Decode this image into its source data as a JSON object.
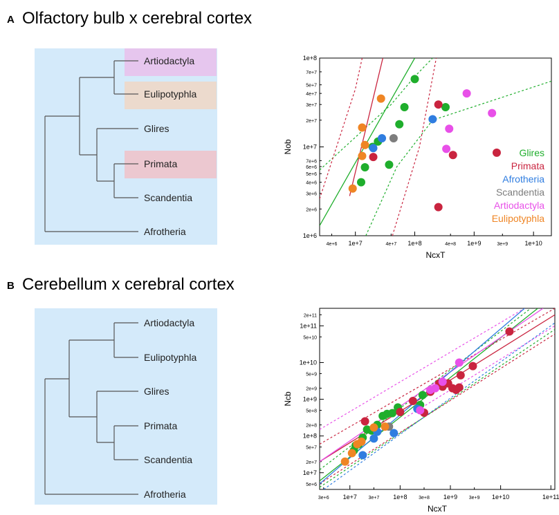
{
  "panels": [
    {
      "letter": "A",
      "title": "Olfactory bulb x cerebral cortex"
    },
    {
      "letter": "B",
      "title": "Cerebellum x cerebral cortex"
    }
  ],
  "trees": [
    {
      "taxa": [
        "Artiodactyla",
        "Eulipotyphla",
        "Glires",
        "Primata",
        "Scandentia",
        "Afrotheria"
      ],
      "highlights": {
        "Artiodactyla": "#e6c6ee",
        "Eulipotyphla": "#ecdacd",
        "Primata": "#ecc8d0"
      }
    },
    {
      "taxa": [
        "Artiodactyla",
        "Eulipotyphla",
        "Glires",
        "Primata",
        "Scandentia",
        "Afrotheria"
      ],
      "highlights": {}
    }
  ],
  "colors": {
    "Glires": "#1fae2c",
    "Primata": "#c9243f",
    "Afrotheria": "#2f7de0",
    "Scandentia": "#7d7d7d",
    "Artiodactyla": "#e850e8",
    "Eulipotyphla": "#ef8524",
    "tree_bg": "#d4eafa"
  },
  "chart_data": [
    {
      "type": "scatter",
      "title": "Olfactory bulb x cerebral cortex",
      "xlabel": "NcxT",
      "ylabel": "Nob",
      "xscale": "log",
      "yscale": "log",
      "xlim": [
        2500000,
        20000000000
      ],
      "ylim": [
        1000000,
        100000000
      ],
      "xticks": [
        {
          "v": 4000000,
          "label": "4e+6",
          "major": false
        },
        {
          "v": 10000000,
          "label": "1e+7",
          "major": true
        },
        {
          "v": 40000000,
          "label": "4e+7",
          "major": false
        },
        {
          "v": 100000000,
          "label": "1e+8",
          "major": true
        },
        {
          "v": 400000000,
          "label": "4e+8",
          "major": false
        },
        {
          "v": 1000000000,
          "label": "1e+9",
          "major": true
        },
        {
          "v": 3000000000,
          "label": "3e+9",
          "major": false
        },
        {
          "v": 10000000000,
          "label": "1e+10",
          "major": true
        }
      ],
      "yticks": [
        {
          "v": 1000000,
          "label": "1e+6",
          "major": true
        },
        {
          "v": 2000000,
          "label": "2e+6",
          "major": false
        },
        {
          "v": 3000000,
          "label": "3e+6",
          "major": false
        },
        {
          "v": 4000000,
          "label": "4e+6",
          "major": false
        },
        {
          "v": 5000000,
          "label": "5e+6",
          "major": false
        },
        {
          "v": 6000000,
          "label": "6e+6",
          "major": false
        },
        {
          "v": 7000000,
          "label": "7e+6",
          "major": false
        },
        {
          "v": 10000000,
          "label": "1e+7",
          "major": true
        },
        {
          "v": 20000000,
          "label": "2e+7",
          "major": false
        },
        {
          "v": 30000000,
          "label": "3e+7",
          "major": false
        },
        {
          "v": 40000000,
          "label": "4e+7",
          "major": false
        },
        {
          "v": 50000000,
          "label": "5e+7",
          "major": false
        },
        {
          "v": 70000000,
          "label": "7e+7",
          "major": false
        },
        {
          "v": 100000000,
          "label": "1e+8",
          "major": true
        }
      ],
      "legend": [
        "Glires",
        "Primata",
        "Afrotheria",
        "Scandentia",
        "Artiodactyla",
        "Eulipotyphla"
      ],
      "legend_position": "right",
      "series": [
        {
          "name": "Glires",
          "points": [
            [
              12500000,
              4000000
            ],
            [
              14500000,
              5900000
            ],
            [
              19500000,
              10000000
            ],
            [
              24000000,
              11500000
            ],
            [
              37000000,
              6300000
            ],
            [
              55000000,
              18000000
            ],
            [
              67000000,
              28000000
            ],
            [
              100000000,
              58000000
            ],
            [
              330000000,
              28000000
            ]
          ]
        },
        {
          "name": "Primata",
          "points": [
            [
              20000000,
              7700000
            ],
            [
              250000000,
              30000000
            ],
            [
              250000000,
              2100000
            ],
            [
              440000000,
              8100000
            ],
            [
              2400000000,
              8600000
            ]
          ]
        },
        {
          "name": "Afrotheria",
          "points": [
            [
              20000000,
              9700000
            ],
            [
              28000000,
              12500000
            ],
            [
              200000000,
              20500000
            ]
          ]
        },
        {
          "name": "Scandentia",
          "points": [
            [
              44000000,
              12500000
            ]
          ]
        },
        {
          "name": "Artiodactyla",
          "points": [
            [
              340000000,
              9500000
            ],
            [
              380000000,
              16000000
            ],
            [
              750000000,
              40000000
            ],
            [
              2000000000,
              24000000
            ]
          ]
        },
        {
          "name": "Eulipotyphla",
          "points": [
            [
              9000000,
              3400000
            ],
            [
              13000000,
              7900000
            ],
            [
              14500000,
              10500000
            ],
            [
              13000000,
              16500000
            ],
            [
              27000000,
              35000000
            ]
          ]
        }
      ],
      "fit_lines": [
        {
          "name": "Glires",
          "style": "solid",
          "points": [
            [
              2500000,
              1300000
            ],
            [
              100000000,
              100000000
            ]
          ]
        },
        {
          "name": "Glires",
          "style": "dashed",
          "points": [
            [
              2500000,
              5500000
            ],
            [
              40000000,
              30000000
            ],
            [
              100000000,
              62000000
            ],
            [
              200000000,
              100000000
            ]
          ]
        },
        {
          "name": "Glires",
          "style": "dashed",
          "points": [
            [
              15000000,
              1000000
            ],
            [
              50000000,
              6000000
            ],
            [
              200000000,
              20000000
            ],
            [
              20000000000,
              55000000
            ]
          ]
        },
        {
          "name": "Primata",
          "style": "solid",
          "points": [
            [
              8000000,
              2800000
            ],
            [
              29000000,
              100000000
            ]
          ]
        },
        {
          "name": "Primata",
          "style": "dashed",
          "points": [
            [
              2500000,
              2600000
            ],
            [
              10000000,
              45000000
            ],
            [
              13000000,
              100000000
            ]
          ]
        },
        {
          "name": "Primata",
          "style": "dashed",
          "points": [
            [
              42000000,
              1000000
            ],
            [
              120000000,
              10000000
            ],
            [
              230000000,
              100000000
            ]
          ]
        }
      ]
    },
    {
      "type": "scatter",
      "title": "Cerebellum x cerebral cortex",
      "xlabel": "NcxT",
      "ylabel": "Ncb",
      "xscale": "log",
      "yscale": "log",
      "xlim": [
        2500000,
        120000000000
      ],
      "ylim": [
        3500000,
        300000000000
      ],
      "xticks": [
        {
          "v": 3000000,
          "label": "3e+6",
          "major": false
        },
        {
          "v": 10000000,
          "label": "1e+7",
          "major": true
        },
        {
          "v": 30000000,
          "label": "3e+7",
          "major": false
        },
        {
          "v": 100000000,
          "label": "1e+8",
          "major": true
        },
        {
          "v": 300000000,
          "label": "3e+8",
          "major": false
        },
        {
          "v": 1000000000,
          "label": "1e+9",
          "major": true
        },
        {
          "v": 3000000000,
          "label": "3e+9",
          "major": false
        },
        {
          "v": 10000000000,
          "label": "1e+10",
          "major": true
        },
        {
          "v": 100000000000,
          "label": "1e+11",
          "major": true
        }
      ],
      "yticks": [
        {
          "v": 5000000,
          "label": "5e+6",
          "major": false
        },
        {
          "v": 10000000,
          "label": "1e+7",
          "major": true
        },
        {
          "v": 20000000,
          "label": "2e+7",
          "major": false
        },
        {
          "v": 50000000,
          "label": "5e+7",
          "major": false
        },
        {
          "v": 100000000,
          "label": "1e+8",
          "major": true
        },
        {
          "v": 200000000,
          "label": "2e+8",
          "major": false
        },
        {
          "v": 500000000,
          "label": "5e+8",
          "major": false
        },
        {
          "v": 1000000000,
          "label": "1e+9",
          "major": true
        },
        {
          "v": 2000000000,
          "label": "2e+9",
          "major": false
        },
        {
          "v": 5000000000,
          "label": "5e+9",
          "major": false
        },
        {
          "v": 10000000000,
          "label": "1e+10",
          "major": true
        },
        {
          "v": 50000000000,
          "label": "5e+10",
          "major": false
        },
        {
          "v": 100000000000,
          "label": "1e+11",
          "major": true
        },
        {
          "v": 200000000000,
          "label": "2e+11",
          "major": false
        }
      ],
      "series": [
        {
          "name": "Glires",
          "points": [
            [
              12000000,
              40000000
            ],
            [
              13000000,
              55000000
            ],
            [
              15000000,
              60000000
            ],
            [
              18000000,
              90000000
            ],
            [
              22000000,
              150000000
            ],
            [
              27000000,
              140000000
            ],
            [
              35000000,
              200000000
            ],
            [
              45000000,
              350000000
            ],
            [
              55000000,
              400000000
            ],
            [
              70000000,
              420000000
            ],
            [
              90000000,
              600000000
            ],
            [
              250000000,
              700000000
            ],
            [
              280000000,
              1300000000
            ]
          ]
        },
        {
          "name": "Primata",
          "points": [
            [
              20000000,
              250000000
            ],
            [
              100000000,
              450000000
            ],
            [
              180000000,
              900000000
            ],
            [
              300000000,
              430000000
            ],
            [
              400000000,
              1600000000
            ],
            [
              600000000,
              2700000000
            ],
            [
              700000000,
              2200000000
            ],
            [
              900000000,
              2700000000
            ],
            [
              1100000000,
              2000000000
            ],
            [
              1300000000,
              1800000000
            ],
            [
              1500000000,
              2100000000
            ],
            [
              1600000000,
              4500000000
            ],
            [
              2800000000,
              8000000000
            ],
            [
              15000000000,
              70000000000
            ]
          ]
        },
        {
          "name": "Afrotheria",
          "points": [
            [
              18000000,
              30000000
            ],
            [
              30000000,
              85000000
            ],
            [
              35000000,
              130000000
            ],
            [
              75000000,
              120000000
            ],
            [
              220000000,
              550000000
            ]
          ]
        },
        {
          "name": "Scandentia",
          "points": [
            [
              60000000,
              180000000
            ]
          ]
        },
        {
          "name": "Artiodactyla",
          "points": [
            [
              250000000,
              500000000
            ],
            [
              400000000,
              1800000000
            ],
            [
              500000000,
              2000000000
            ],
            [
              700000000,
              3000000000
            ],
            [
              1500000000,
              10000000000
            ]
          ]
        },
        {
          "name": "Eulipotyphla",
          "points": [
            [
              8000000,
              20000000
            ],
            [
              11000000,
              34000000
            ],
            [
              14000000,
              60000000
            ],
            [
              17000000,
              70000000
            ],
            [
              30000000,
              170000000
            ],
            [
              50000000,
              180000000
            ]
          ]
        }
      ],
      "fit_lines": [
        {
          "name": "Glires",
          "style": "solid",
          "points": [
            [
              2500000,
              6000000
            ],
            [
              55000000000,
              300000000000
            ]
          ]
        },
        {
          "name": "Glires",
          "style": "dashed",
          "points": [
            [
              2500000,
              12000000
            ],
            [
              40000000000,
              300000000000
            ]
          ]
        },
        {
          "name": "Glires",
          "style": "dashed",
          "points": [
            [
              2500000,
              4000000
            ],
            [
              120000000000,
              80000000000
            ]
          ]
        },
        {
          "name": "Primata",
          "style": "solid",
          "points": [
            [
              2500000,
              20000000
            ],
            [
              120000000000,
              200000000000
            ]
          ]
        },
        {
          "name": "Primata",
          "style": "dashed",
          "points": [
            [
              2500000,
              60000000
            ],
            [
              120000000000,
              300000000000
            ]
          ]
        },
        {
          "name": "Primata",
          "style": "dashed",
          "points": [
            [
              2500000,
              5000000
            ],
            [
              120000000000,
              60000000000
            ]
          ]
        },
        {
          "name": "Artiodactyla",
          "style": "solid",
          "points": [
            [
              2500000,
              20000000
            ],
            [
              70000000000,
              300000000000
            ]
          ]
        },
        {
          "name": "Artiodactyla",
          "style": "dashed",
          "points": [
            [
              2500000,
              150000000
            ],
            [
              30000000000,
              300000000000
            ]
          ]
        },
        {
          "name": "Artiodactyla",
          "style": "dashed",
          "points": [
            [
              120000000,
              300000000
            ],
            [
              120000000000,
              100000000000
            ]
          ]
        },
        {
          "name": "Afrotheria",
          "style": "solid",
          "points": [
            [
              2500000,
              5000000
            ],
            [
              30000000000,
              300000000000
            ]
          ]
        },
        {
          "name": "Afrotheria",
          "style": "dashed",
          "points": [
            [
              3000000,
              3500000
            ],
            [
              120000000000,
              120000000000
            ]
          ]
        }
      ]
    }
  ]
}
